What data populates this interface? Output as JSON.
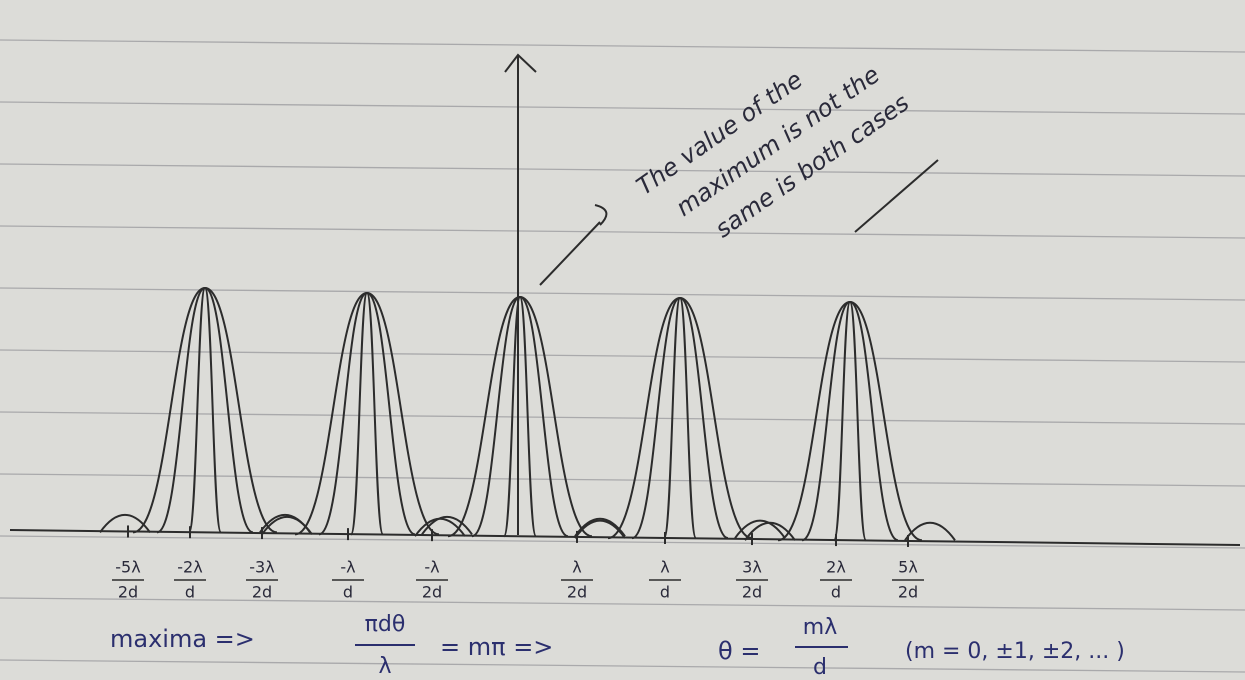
{
  "annotation": [
    "The value of the",
    "maximum is not the",
    "same is both cases"
  ],
  "x_labels": [
    {
      "numerator": "-5λ",
      "denominator": "2d"
    },
    {
      "numerator": "-2λ",
      "denominator": "d"
    },
    {
      "numerator": "-3λ",
      "denominator": "2d"
    },
    {
      "numerator": "-λ",
      "denominator": "d"
    },
    {
      "numerator": "-λ",
      "denominator": "2d"
    },
    {
      "numerator": "λ",
      "denominator": "2d"
    },
    {
      "numerator": "λ",
      "denominator": "d"
    },
    {
      "numerator": "3λ",
      "denominator": "2d"
    },
    {
      "numerator": "2λ",
      "denominator": "d"
    },
    {
      "numerator": "5λ",
      "denominator": "2d"
    }
  ],
  "formula": {
    "lead": "maxima =>",
    "condition": {
      "numerator": "πdθ",
      "denominator": "λ"
    },
    "condition_rhs": "= mπ =>",
    "result_lhs": "θ =",
    "result": {
      "numerator": "mλ",
      "denominator": "d"
    },
    "range": "(m = 0, ±1, ±2, ... )"
  }
}
